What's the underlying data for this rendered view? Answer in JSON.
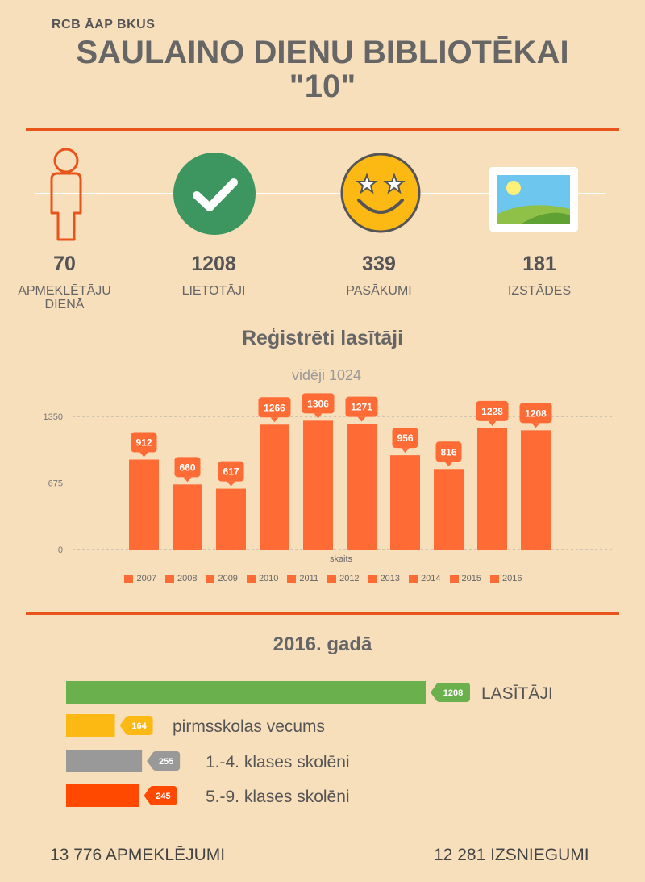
{
  "header": {
    "kicker": "RCB ĀAP BKUS",
    "title_line1": "SAULAINO DIENU BIBLIOTĒKAI",
    "title_line2": "\"10\""
  },
  "stats": [
    {
      "value": "70",
      "label_line1": "APMEKLĒTĀJU",
      "label_line2": "DIENĀ",
      "icon": "person-outline-icon"
    },
    {
      "value": "1208",
      "label_line1": "LIETOTĀJI",
      "label_line2": "",
      "icon": "checkmark-circle-icon"
    },
    {
      "value": "339",
      "label_line1": "PASĀKUMI",
      "label_line2": "",
      "icon": "star-eyes-smiley-icon"
    },
    {
      "value": "181",
      "label_line1": "IZSTĀDES",
      "label_line2": "",
      "icon": "landscape-picture-icon"
    }
  ],
  "chart_data": [
    {
      "type": "bar",
      "title": "Reģistrēti lasītāji",
      "subtitle": "vidēji 1024",
      "xlabel": "skaits",
      "categories": [
        "2007",
        "2008",
        "2009",
        "2010",
        "2011",
        "2012",
        "2013",
        "2014",
        "2015",
        "2016"
      ],
      "values": [
        912,
        660,
        617,
        1266,
        1306,
        1271,
        956,
        816,
        1228,
        1208
      ],
      "yticks": [
        0,
        675,
        1350
      ],
      "ylim": [
        0,
        1350
      ],
      "grid": true,
      "legend_position": "bottom",
      "color": "#ff6b35"
    },
    {
      "type": "bar",
      "orientation": "horizontal",
      "title": "2016. gadā",
      "categories": [
        "LASĪTĀJI",
        "pirmsskolas vecums",
        "1.-4. klases skolēni",
        "5.-9. klases skolēni"
      ],
      "values": [
        1208,
        164,
        255,
        245
      ],
      "colors": [
        "#6ab04c",
        "#fdb913",
        "#999999",
        "#ff4800"
      ]
    }
  ],
  "footer": {
    "visits": "13 776 APMEKLĒJUMI",
    "loans": "12 281 IZSNIEGUMI"
  }
}
